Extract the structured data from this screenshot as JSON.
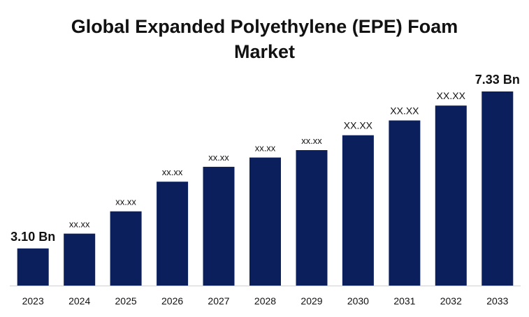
{
  "chart_data": {
    "type": "bar",
    "title_lines": [
      "Global Expanded Polyethylene (EPE) Foam",
      "Market"
    ],
    "categories": [
      "2023",
      "2024",
      "2025",
      "2026",
      "2027",
      "2028",
      "2029",
      "2030",
      "2031",
      "2032",
      "2033"
    ],
    "values": [
      3.1,
      3.5,
      4.1,
      4.9,
      5.3,
      5.55,
      5.75,
      6.15,
      6.55,
      6.95,
      7.33
    ],
    "data_labels": [
      "3.10 Bn",
      "xx.xx",
      "xx.xx",
      "xx.xx",
      "xx.xx",
      "xx.xx",
      "xx.xx",
      "XX.XX",
      "XX.XX",
      "XX.XX",
      "7.33 Bn"
    ],
    "ylim": [
      2.1,
      7.33
    ],
    "grid": false,
    "legend": "none",
    "colors": {
      "bar": "#0b1f5c"
    }
  }
}
